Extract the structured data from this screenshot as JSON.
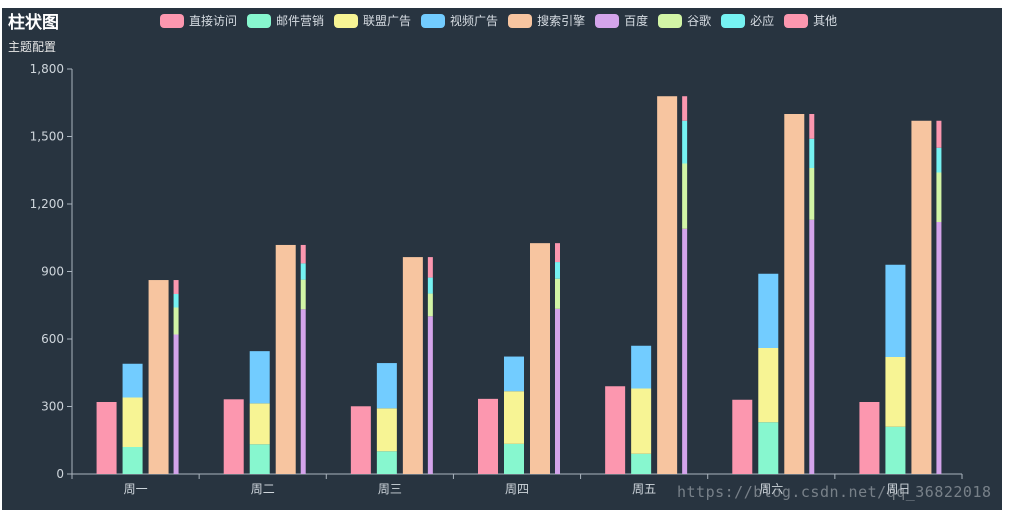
{
  "chart_data": {
    "type": "bar",
    "title": "柱状图",
    "subtitle": "主题配置",
    "categories": [
      "周一",
      "周二",
      "周三",
      "周四",
      "周五",
      "周六",
      "周日"
    ],
    "ylim": [
      0,
      1800
    ],
    "yticks": [
      "0",
      "300",
      "600",
      "900",
      "1,200",
      "1,500",
      "1,800"
    ],
    "ytick_values": [
      0,
      300,
      600,
      900,
      1200,
      1500,
      1800
    ],
    "legend_position": "top",
    "grid": false,
    "series": [
      {
        "name": "直接访问",
        "stack": "",
        "color": "#fc97af",
        "values": [
          320,
          332,
          301,
          334,
          390,
          330,
          320
        ]
      },
      {
        "name": "邮件营销",
        "stack": "广告",
        "color": "#87f7cf",
        "values": [
          120,
          132,
          101,
          134,
          90,
          230,
          210
        ]
      },
      {
        "name": "联盟广告",
        "stack": "广告",
        "color": "#f7f494",
        "values": [
          220,
          182,
          191,
          234,
          290,
          330,
          310
        ]
      },
      {
        "name": "视频广告",
        "stack": "广告",
        "color": "#72ccff",
        "values": [
          150,
          232,
          201,
          154,
          190,
          330,
          410
        ]
      },
      {
        "name": "搜索引擎",
        "stack": "",
        "color": "#f7c5a0",
        "values": [
          862,
          1018,
          964,
          1026,
          1679,
          1600,
          1570
        ]
      },
      {
        "name": "百度",
        "stack": "搜索引擎",
        "color": "#d4a4eb",
        "values": [
          620,
          732,
          701,
          734,
          1090,
          1130,
          1120
        ]
      },
      {
        "name": "谷歌",
        "stack": "搜索引擎",
        "color": "#d2f5a6",
        "values": [
          120,
          132,
          101,
          134,
          290,
          230,
          220
        ]
      },
      {
        "name": "必应",
        "stack": "搜索引擎",
        "color": "#76f2f2",
        "values": [
          60,
          72,
          71,
          74,
          190,
          130,
          110
        ]
      },
      {
        "name": "其他",
        "stack": "搜索引擎",
        "color": "#fc97af",
        "values": [
          62,
          82,
          91,
          84,
          109,
          110,
          120
        ]
      }
    ]
  },
  "watermark": "https://blog.csdn.net/qq_36822018"
}
